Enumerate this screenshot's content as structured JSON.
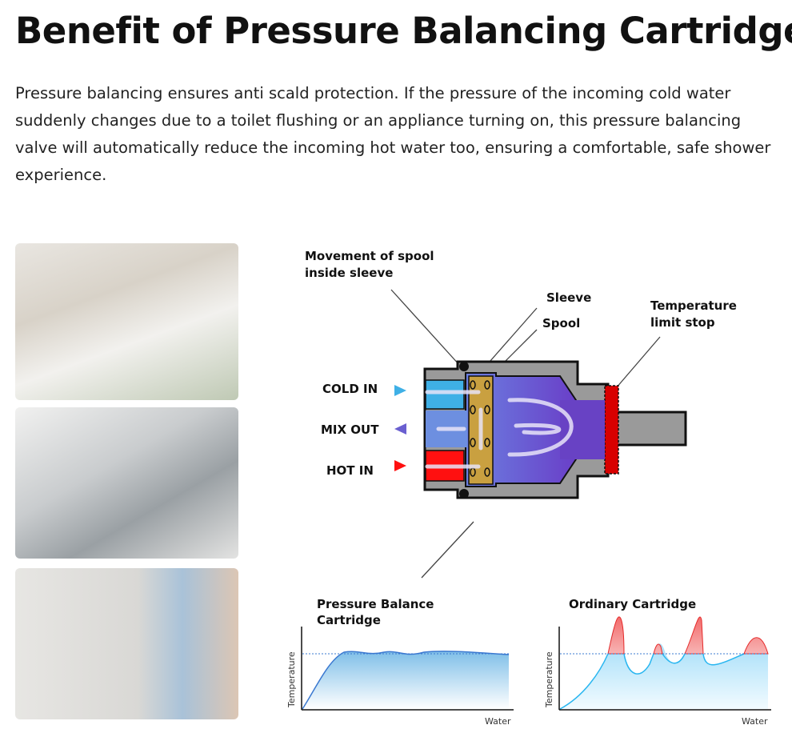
{
  "header": {
    "title": "Benefit of Pressure Balancing Cartridge",
    "intro": "Pressure balancing ensures anti scald protection.  If the pressure of the incoming cold water suddenly changes due to a toilet flushing or an appliance turning on, this pressure balancing valve will automatically reduce the incoming hot water too, ensuring a comfortable, safe shower experience."
  },
  "photos": [
    "hand-washing-at-faucet",
    "kitchen-sink-pull-down-faucet",
    "washing-machine"
  ],
  "diagram": {
    "callouts": {
      "movement_line1": "Movement of spool",
      "movement_line2": "inside sleeve",
      "sleeve": "Sleeve",
      "spool": "Spool",
      "temp_line1": "Temperature",
      "temp_line2": "limit stop"
    },
    "ports": [
      {
        "label": "COLD IN",
        "color": "#3fb0e6"
      },
      {
        "label": "MIX OUT",
        "color": "#6a5fd0"
      },
      {
        "label": "HOT IN",
        "color": "#ff1010"
      }
    ]
  },
  "charts": [
    {
      "title_line1": "Pressure Balance",
      "title_line2": "Cartridge",
      "ylabel": "Temperature",
      "xlabel": "Water"
    },
    {
      "title_line1": "Ordinary Cartridge",
      "title_line2": "",
      "ylabel": "Temperature",
      "xlabel": "Water"
    }
  ]
}
